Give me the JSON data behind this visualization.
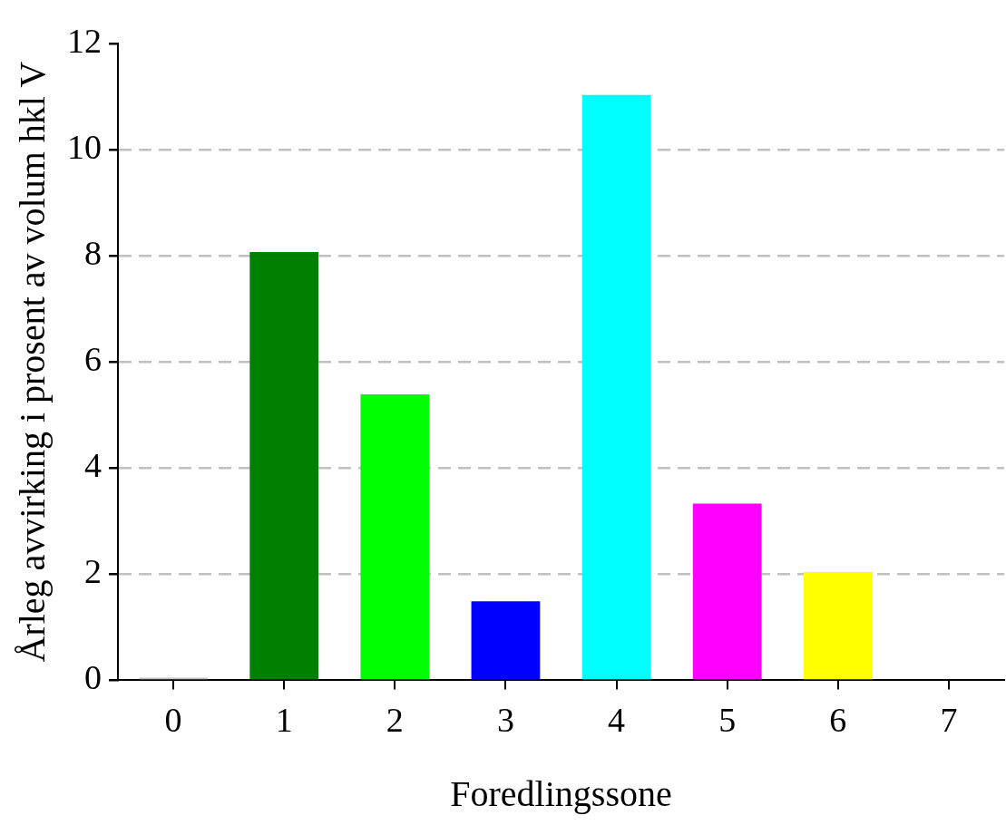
{
  "chart_data": {
    "type": "bar",
    "xlabel": "Foredlingssone",
    "ylabel": "Årleg avvirking i prosent av volum hkl V",
    "categories": [
      "0",
      "1",
      "2",
      "3",
      "4",
      "5",
      "6",
      "7"
    ],
    "values": [
      0.05,
      8.07,
      5.39,
      1.49,
      11.03,
      3.33,
      2.04,
      0
    ],
    "colors": [
      "#c0c0c0",
      "#008000",
      "#00ff00",
      "#0000ff",
      "#00ffff",
      "#ff00ff",
      "#ffff00",
      "#808080"
    ],
    "ylim": [
      0,
      12
    ],
    "yticks": [
      0,
      2,
      4,
      6,
      8,
      10,
      12
    ],
    "grid": "y",
    "legend": false
  }
}
